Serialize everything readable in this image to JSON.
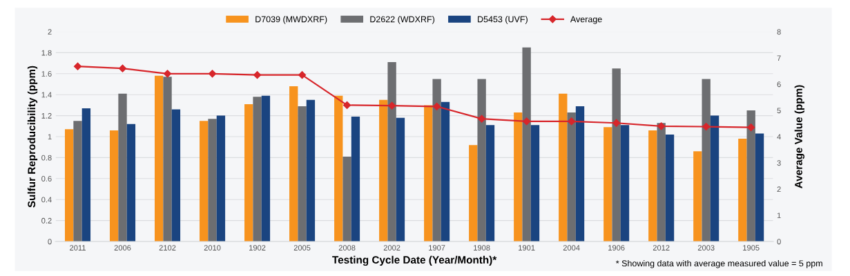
{
  "chart_data": {
    "type": "bar",
    "xlabel": "Testing Cycle Date (Year/Month)*",
    "ylabel": "Sulfur Reproducibility (ppm)",
    "y2label": "Average Value (ppm)",
    "categories": [
      "2011",
      "2006",
      "2102",
      "2010",
      "1902",
      "2005",
      "2008",
      "2002",
      "1907",
      "1908",
      "1901",
      "2004",
      "1906",
      "2012",
      "2003",
      "1905"
    ],
    "series": [
      {
        "name": "D7039 (MWDXRF)",
        "color": "#f7931e",
        "values": [
          1.07,
          1.06,
          1.58,
          1.15,
          1.31,
          1.48,
          1.39,
          1.35,
          1.3,
          0.92,
          1.23,
          1.41,
          1.09,
          1.06,
          0.86,
          0.98
        ]
      },
      {
        "name": "D2622 (WDXRF)",
        "color": "#6d6e71",
        "values": [
          1.15,
          1.41,
          1.57,
          1.17,
          1.38,
          1.29,
          0.81,
          1.71,
          1.55,
          1.55,
          1.85,
          1.23,
          1.65,
          1.13,
          1.55,
          1.25
        ]
      },
      {
        "name": "D5453 (UVF)",
        "color": "#1a4480",
        "values": [
          1.27,
          1.12,
          1.26,
          1.2,
          1.39,
          1.35,
          1.19,
          1.18,
          1.33,
          1.11,
          1.11,
          1.29,
          1.11,
          1.02,
          1.2,
          1.03
        ]
      },
      {
        "name": "Average",
        "type": "line",
        "axis": "y2",
        "marker": "diamond",
        "color": "#d7262b",
        "values": [
          6.68,
          6.6,
          6.4,
          6.4,
          6.35,
          6.35,
          5.2,
          5.18,
          5.15,
          4.68,
          4.58,
          4.58,
          4.52,
          4.4,
          4.38,
          4.35
        ]
      }
    ],
    "ylim": [
      0,
      2
    ],
    "yticks": [
      0,
      0.2,
      0.4,
      0.6,
      0.8,
      1,
      1.2,
      1.4,
      1.6,
      1.8,
      2
    ],
    "y2lim": [
      0,
      8
    ],
    "y2ticks": [
      0,
      1,
      2,
      3,
      4,
      5,
      6,
      7,
      8
    ],
    "grid": "y",
    "legend": "top",
    "annotations": [
      "* Showing data with average measured value = 5 ppm"
    ]
  }
}
